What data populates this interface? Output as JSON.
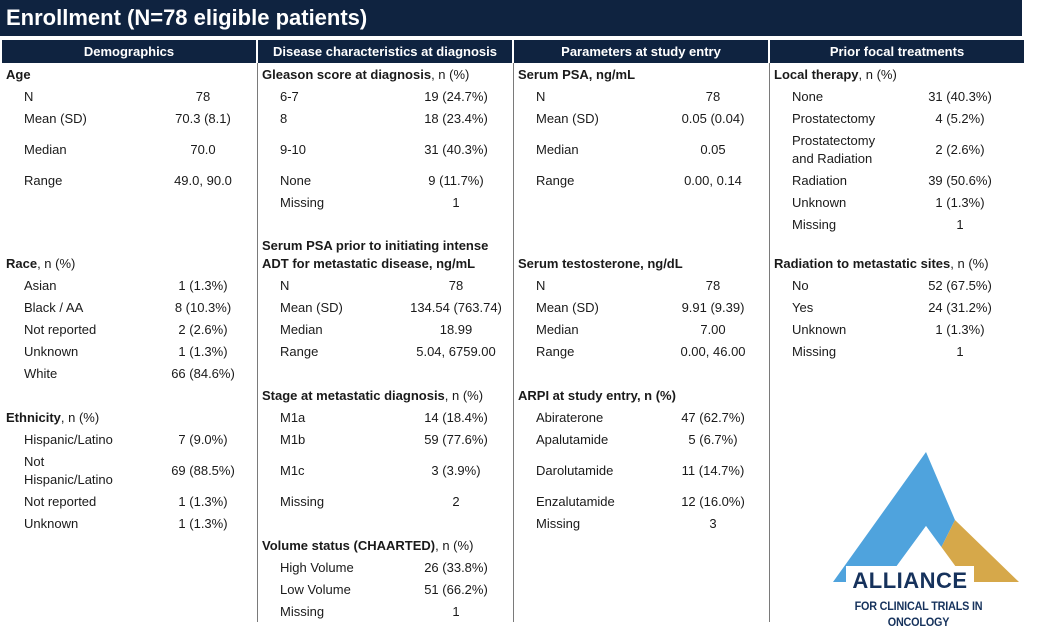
{
  "title": "Enrollment (N=78 eligible patients)",
  "headers": [
    "Demographics",
    "Disease characteristics at diagnosis",
    "Parameters at study entry",
    "Prior focal treatments"
  ],
  "columns": [
    {
      "sections": [
        {
          "title": "Age",
          "suffix": "",
          "rows": [
            {
              "label": "N",
              "value": "78"
            },
            {
              "label": "Mean (SD)",
              "value": "70.3 (8.1)"
            },
            {
              "label": "Median",
              "value": "70.0"
            },
            {
              "label": "Range",
              "value": "49.0, 90.0"
            }
          ]
        },
        {
          "title": "Race",
          "suffix": ", n (%)",
          "rows": [
            {
              "label": "Asian",
              "value": "1 (1.3%)"
            },
            {
              "label": "Black / AA",
              "value": "8 (10.3%)"
            },
            {
              "label": "Not reported",
              "value": "2 (2.6%)"
            },
            {
              "label": "Unknown",
              "value": "1 (1.3%)"
            },
            {
              "label": "White",
              "value": "66 (84.6%)"
            }
          ]
        },
        {
          "title": "Ethnicity",
          "suffix": ", n (%)",
          "rows": [
            {
              "label": "Hispanic/Latino",
              "value": "7 (9.0%)"
            },
            {
              "label": "Not Hispanic/Latino",
              "value": "69 (88.5%)"
            },
            {
              "label": "Not reported",
              "value": "1 (1.3%)"
            },
            {
              "label": "Unknown",
              "value": "1 (1.3%)"
            }
          ]
        }
      ]
    },
    {
      "sections": [
        {
          "title": "Gleason score at diagnosis",
          "suffix": ", n (%)",
          "rows": [
            {
              "label": "6-7",
              "value": "19 (24.7%)"
            },
            {
              "label": "8",
              "value": "18 (23.4%)"
            },
            {
              "label": "9-10",
              "value": "31 (40.3%)"
            },
            {
              "label": "None",
              "value": "9 (11.7%)"
            },
            {
              "label": "Missing",
              "value": "1"
            }
          ]
        },
        {
          "title": "Serum PSA prior to initiating intense",
          "title2": "ADT for metastatic disease, ng/mL",
          "suffix": "",
          "rows": [
            {
              "label": "N",
              "value": "78"
            },
            {
              "label": "Mean (SD)",
              "value": "134.54 (763.74)"
            },
            {
              "label": "Median",
              "value": "18.99"
            },
            {
              "label": "Range",
              "value": "5.04, 6759.00"
            }
          ]
        },
        {
          "title": "Stage at metastatic diagnosis",
          "suffix": ", n (%)",
          "rows": [
            {
              "label": "M1a",
              "value": "14 (18.4%)"
            },
            {
              "label": "M1b",
              "value": "59 (77.6%)"
            },
            {
              "label": "M1c",
              "value": "3 (3.9%)"
            },
            {
              "label": "Missing",
              "value": "2"
            }
          ]
        },
        {
          "title": "Volume status (CHAARTED)",
          "suffix": ", n (%)",
          "rows": [
            {
              "label": "High Volume",
              "value": "26 (33.8%)"
            },
            {
              "label": "Low Volume",
              "value": "51 (66.2%)"
            },
            {
              "label": "Missing",
              "value": "1"
            }
          ]
        }
      ]
    },
    {
      "sections": [
        {
          "title": "Serum PSA, ng/mL",
          "suffix": "",
          "rows": [
            {
              "label": "N",
              "value": "78"
            },
            {
              "label": "Mean (SD)",
              "value": "0.05 (0.04)"
            },
            {
              "label": "Median",
              "value": "0.05"
            },
            {
              "label": "Range",
              "value": "0.00, 0.14"
            }
          ]
        },
        {
          "title": "Serum testosterone, ng/dL",
          "suffix": "",
          "rows": [
            {
              "label": "N",
              "value": "78"
            },
            {
              "label": "Mean (SD)",
              "value": "9.91 (9.39)"
            },
            {
              "label": "Median",
              "value": "7.00"
            },
            {
              "label": "Range",
              "value": "0.00, 46.00"
            }
          ]
        },
        {
          "title": "ARPI at study entry, n (%)",
          "suffix": "",
          "rows": [
            {
              "label": "Abiraterone",
              "value": "47 (62.7%)"
            },
            {
              "label": "Apalutamide",
              "value": "5 (6.7%)"
            },
            {
              "label": "Darolutamide",
              "value": "11 (14.7%)"
            },
            {
              "label": "Enzalutamide",
              "value": "12 (16.0%)"
            },
            {
              "label": "Missing",
              "value": "3"
            }
          ]
        }
      ]
    },
    {
      "sections": [
        {
          "title": "Local therapy",
          "suffix": ", n (%)",
          "rows": [
            {
              "label": "None",
              "value": "31 (40.3%)"
            },
            {
              "label": "Prostatectomy",
              "value": "4 (5.2%)"
            },
            {
              "label": "Prostatectomy and Radiation",
              "value": "2 (2.6%)"
            },
            {
              "label": "Radiation",
              "value": "39 (50.6%)"
            },
            {
              "label": "Unknown",
              "value": "1 (1.3%)"
            },
            {
              "label": "Missing",
              "value": "1"
            }
          ]
        },
        {
          "title": "Radiation to metastatic sites",
          "suffix": ", n (%)",
          "rows": [
            {
              "label": "No",
              "value": "52 (67.5%)"
            },
            {
              "label": "Yes",
              "value": "24 (31.2%)"
            },
            {
              "label": "Unknown",
              "value": "1 (1.3%)"
            },
            {
              "label": "Missing",
              "value": "1"
            }
          ]
        }
      ]
    }
  ],
  "logo": {
    "name": "ALLIANCE",
    "tagline": "FOR CLINICAL TRIALS IN ONCOLOGY",
    "colors": {
      "blue": "#4fa3dd",
      "gold": "#d6a84a",
      "navy": "#16325c"
    }
  }
}
